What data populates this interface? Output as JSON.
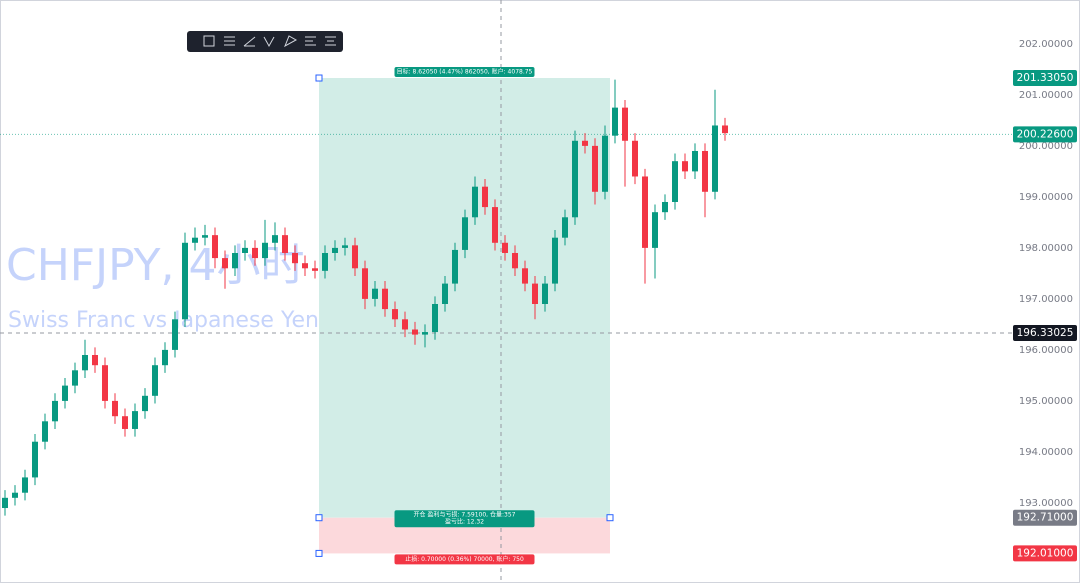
{
  "chart_data": {
    "type": "candlestick",
    "title": "CHFJPY, 4小时",
    "subtitle": "Swiss Franc vs Japanese Yen",
    "up_color": "#089981",
    "down_color": "#f23645",
    "ylim": [
      191.43,
      202.86
    ],
    "yticks": [
      {
        "value": 193,
        "label": "193.00000"
      },
      {
        "value": 194,
        "label": "194.00000"
      },
      {
        "value": 195,
        "label": "195.00000"
      },
      {
        "value": 196,
        "label": "196.00000"
      },
      {
        "value": 197,
        "label": "197.00000"
      },
      {
        "value": 198,
        "label": "198.00000"
      },
      {
        "value": 199,
        "label": "199.00000"
      },
      {
        "value": 200,
        "label": "200.00000"
      },
      {
        "value": 201,
        "label": "201.00000"
      },
      {
        "value": 202,
        "label": "202.00000"
      }
    ],
    "open": [
      192.9,
      193.1,
      193.2,
      193.5,
      194.2,
      194.6,
      195.0,
      195.3,
      195.6,
      195.9,
      195.7,
      195.0,
      194.7,
      194.45,
      194.8,
      195.1,
      195.7,
      196.0,
      196.6,
      198.1,
      198.2,
      198.25,
      197.8,
      197.6,
      197.9,
      198.0,
      197.8,
      198.1,
      198.25,
      197.9,
      197.7,
      197.6,
      197.55,
      197.9,
      198.0,
      198.05,
      197.6,
      197.0,
      197.2,
      196.8,
      196.6,
      196.4,
      196.3,
      196.35,
      196.9,
      197.3,
      197.96,
      198.6,
      199.2,
      198.8,
      198.1,
      197.9,
      197.6,
      197.3,
      196.9,
      197.3,
      198.2,
      198.6,
      200.1,
      200.0,
      199.1,
      200.2,
      200.75,
      200.1,
      199.4,
      198.0,
      198.7,
      198.9,
      199.7,
      199.5,
      199.9,
      199.1,
      200.4
    ],
    "high": [
      193.25,
      193.35,
      193.65,
      194.35,
      194.75,
      195.15,
      195.45,
      195.75,
      196.2,
      196.05,
      195.85,
      195.15,
      194.85,
      194.95,
      195.25,
      195.85,
      196.15,
      196.75,
      198.3,
      198.4,
      198.45,
      198.4,
      197.95,
      198.05,
      198.15,
      198.15,
      198.55,
      198.5,
      198.4,
      198.05,
      197.85,
      197.75,
      198.05,
      198.15,
      198.2,
      198.2,
      197.75,
      197.35,
      197.35,
      196.95,
      196.75,
      196.55,
      196.5,
      197.05,
      197.45,
      198.1,
      198.75,
      199.4,
      199.35,
      198.95,
      198.25,
      198.05,
      197.75,
      197.45,
      197.45,
      198.35,
      198.75,
      200.3,
      200.25,
      200.15,
      200.4,
      201.3,
      200.9,
      200.25,
      199.55,
      198.85,
      199.05,
      199.85,
      199.85,
      200.05,
      200.05,
      201.1,
      200.55
    ],
    "low": [
      192.75,
      192.95,
      193.05,
      193.35,
      194.05,
      194.45,
      194.85,
      195.15,
      195.45,
      195.55,
      194.85,
      194.55,
      194.3,
      194.3,
      194.65,
      194.95,
      195.55,
      195.85,
      196.45,
      197.95,
      198.05,
      197.6,
      197.2,
      197.45,
      197.75,
      197.65,
      197.65,
      197.95,
      197.75,
      197.55,
      197.45,
      197.4,
      197.4,
      197.75,
      197.85,
      197.45,
      196.8,
      196.85,
      196.65,
      196.45,
      196.25,
      196.1,
      196.05,
      196.2,
      196.75,
      197.15,
      197.8,
      198.45,
      198.65,
      197.95,
      197.75,
      197.45,
      197.15,
      196.6,
      196.75,
      197.15,
      198.05,
      198.45,
      199.85,
      198.85,
      198.95,
      200.05,
      199.2,
      199.25,
      197.3,
      197.4,
      198.55,
      198.75,
      199.35,
      199.35,
      198.6,
      198.95,
      200.1
    ],
    "close": [
      193.1,
      193.2,
      193.5,
      194.2,
      194.6,
      195.0,
      195.3,
      195.6,
      195.9,
      195.7,
      195.0,
      194.7,
      194.45,
      194.8,
      195.1,
      195.7,
      196.0,
      196.6,
      198.1,
      198.2,
      198.25,
      197.8,
      197.6,
      197.9,
      198.0,
      197.8,
      198.1,
      198.25,
      197.9,
      197.7,
      197.6,
      197.55,
      197.9,
      198.0,
      198.05,
      197.6,
      197.0,
      197.2,
      196.8,
      196.6,
      196.4,
      196.3,
      196.35,
      196.9,
      197.3,
      197.96,
      198.6,
      199.2,
      198.8,
      198.1,
      197.9,
      197.6,
      197.3,
      196.9,
      197.3,
      198.2,
      198.6,
      200.1,
      200.0,
      199.1,
      200.2,
      200.75,
      200.1,
      199.4,
      198.0,
      198.7,
      198.9,
      199.7,
      199.5,
      199.9,
      199.1,
      200.4,
      200.25
    ],
    "price_labels": [
      {
        "value": 201.3305,
        "label": "201.33050",
        "color": "#089981"
      },
      {
        "value": 200.226,
        "label": "200.22600",
        "color": "#089981"
      },
      {
        "value": 196.33025,
        "label": "196.33025",
        "color": "#131722"
      },
      {
        "value": 192.71,
        "label": "192.71000",
        "color": "#787b86"
      },
      {
        "value": 192.01,
        "label": "192.01000",
        "color": "#f23645"
      }
    ],
    "position": {
      "target_label": "目标: 8.62050 (4.47%) 862050, 账户: 4078.75",
      "entry_label": "开仓 盈利与亏损: 7.59100, 仓量:357",
      "ratio_label": "盈亏比: 12.32",
      "stop_label": "止损: 0.70000 (0.36%) 70000, 账户: 750"
    }
  }
}
